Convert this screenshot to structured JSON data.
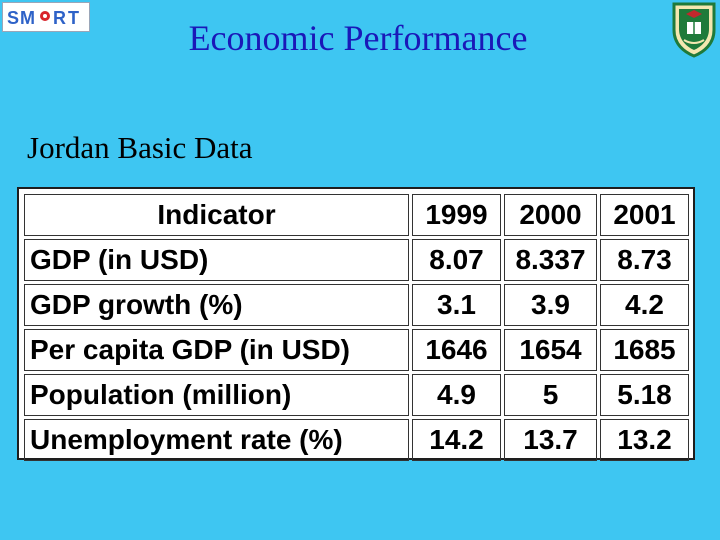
{
  "header": {
    "logo_text": "SMART",
    "title": "Economic Performance"
  },
  "subtitle": "Jordan Basic Data",
  "table": {
    "columns": [
      "Indicator",
      "1999",
      "2000",
      "2001"
    ],
    "rows": [
      {
        "indicator": "GDP (in USD)",
        "values": [
          "8.07",
          "8.337",
          "8.73"
        ]
      },
      {
        "indicator": "GDP growth (%)",
        "values": [
          "3.1",
          "3.9",
          "4.2"
        ]
      },
      {
        "indicator": "Per capita GDP (in USD)",
        "values": [
          "1646",
          "1654",
          "1685"
        ]
      },
      {
        "indicator": "Population (million)",
        "values": [
          "4.9",
          "5",
          "5.18"
        ]
      },
      {
        "indicator": "Unemployment rate (%)",
        "values": [
          "14.2",
          "13.7",
          "13.2"
        ]
      }
    ]
  },
  "colors": {
    "background": "#3ec6f2",
    "title": "#1a18b8",
    "logo_blue": "#2e62c8",
    "logo_red": "#d8232a",
    "seal_green": "#1f7a3a",
    "seal_red": "#c1272d"
  }
}
